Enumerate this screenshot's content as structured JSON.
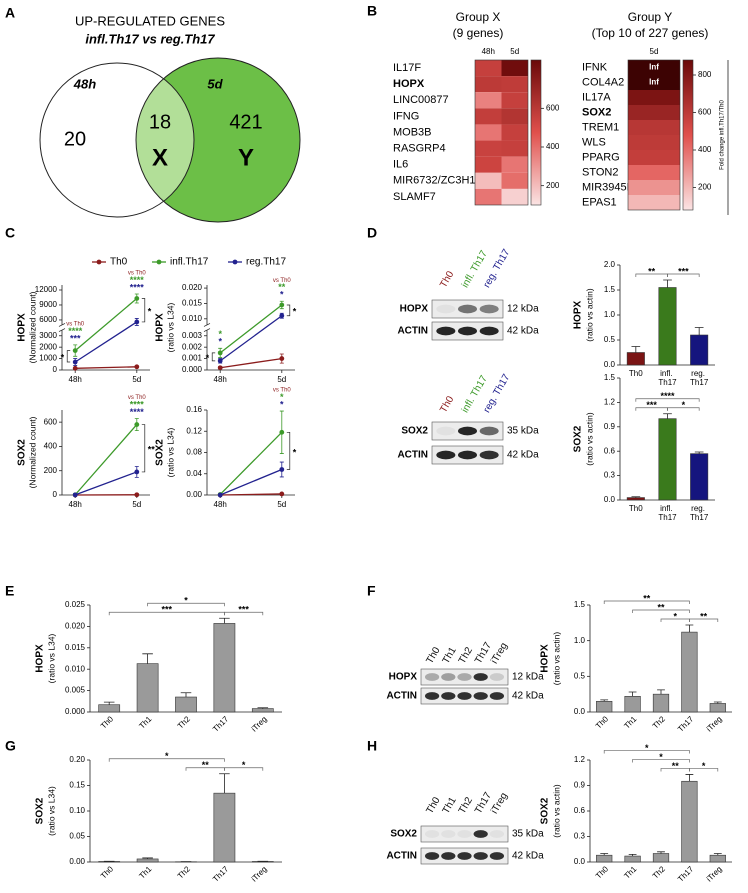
{
  "chart_data": [
    {
      "type": "venn",
      "panel": "A",
      "title": "UP-REGULATED GENES",
      "subtitle": "infl.Th17 vs reg.Th17",
      "sets": [
        {
          "name": "48h",
          "color": "#ffffff"
        },
        {
          "name": "5d",
          "color": "#6cbf47"
        }
      ],
      "overlap_color": "#b2df98",
      "values": [
        20,
        18,
        421
      ],
      "region_labels": [
        null,
        "X",
        "Y"
      ]
    },
    {
      "type": "heatmap",
      "panel": "B",
      "title": "Group X",
      "subtitle": "(9 genes)",
      "columns": [
        "48h",
        "5d"
      ],
      "rows": [
        "IL17F",
        "HOPX",
        "LINC00877",
        "IFNG",
        "MOB3B",
        "RASGRP4",
        "IL6",
        "MIR6732/ZC3H12A",
        "SLAMF7"
      ],
      "values": [
        [
          560,
          830
        ],
        [
          590,
          580
        ],
        [
          350,
          560
        ],
        [
          570,
          620
        ],
        [
          380,
          560
        ],
        [
          550,
          560
        ],
        [
          540,
          380
        ],
        [
          200,
          400
        ],
        [
          380,
          150
        ]
      ],
      "highlight_row": 1,
      "clim": [
        100,
        850
      ],
      "cticks": [
        200,
        400,
        600
      ],
      "colors": [
        "#fbe4e4",
        "#e0504c",
        "#6a0909"
      ]
    },
    {
      "type": "heatmap",
      "title": "Group Y",
      "subtitle": "(Top 10 of 227 genes)",
      "columns": [
        "5d"
      ],
      "rows": [
        "IFNK",
        "COL4A2",
        "IL17A",
        "SOX2",
        "TREM1",
        "WLS",
        "PPARG",
        "STON2",
        "MIR3945HG",
        "EPAS1"
      ],
      "values": [
        [
          null
        ],
        [
          null
        ],
        [
          820
        ],
        [
          720
        ],
        [
          620
        ],
        [
          600
        ],
        [
          580
        ],
        [
          420
        ],
        [
          300
        ],
        [
          200
        ]
      ],
      "value_labels": [
        [
          "Inf"
        ],
        [
          "Inf"
        ],
        [
          null
        ],
        [
          null
        ],
        [
          null
        ],
        [
          null
        ],
        [
          null
        ],
        [
          null
        ],
        [
          null
        ],
        [
          null
        ]
      ],
      "highlight_row": 3,
      "clim": [
        80,
        880
      ],
      "cticks": [
        200,
        400,
        600,
        800
      ],
      "colors": [
        "#fbe4e4",
        "#e0504c",
        "#6a0909"
      ],
      "inf_color": "#3d0303",
      "colorbar_label": "Fold change infl.Th17/Th0"
    },
    {
      "type": "line",
      "panel": "C",
      "ylabel": "HOPX",
      "ylabel2": "(Normalized count)",
      "categories": [
        "48h",
        "5d"
      ],
      "legend": "top",
      "series": [
        {
          "name": "Th0",
          "color": "#8b1c1c",
          "values": [
            150,
            280
          ],
          "errors": [
            50,
            60
          ]
        },
        {
          "name": "infl.Th17",
          "color": "#3d9a2a",
          "values": [
            1700,
            10300
          ],
          "errors": [
            500,
            900
          ],
          "sig": [
            "****",
            "****"
          ]
        },
        {
          "name": "reg.Th17",
          "color": "#22228f",
          "values": [
            700,
            5600
          ],
          "errors": [
            300,
            700
          ],
          "sig": [
            "***",
            "****"
          ]
        }
      ],
      "sig_label": [
        "vs Th0",
        "vs Th0"
      ],
      "pair_sig": [
        "*",
        "*"
      ],
      "ylim": [
        0,
        13000
      ],
      "ybreak": [
        3500,
        5000
      ],
      "yticks": [
        0,
        1000,
        2000,
        3000,
        6000,
        9000,
        12000
      ]
    },
    {
      "type": "line",
      "ylabel": "HOPX",
      "ylabel2": "(ratio vs L34)",
      "categories": [
        "48h",
        "5d"
      ],
      "series": [
        {
          "color": "#8b1c1c",
          "values": [
            0.0002,
            0.001
          ],
          "errors": [
            0.0001,
            0.0004
          ]
        },
        {
          "color": "#3d9a2a",
          "values": [
            0.0015,
            0.0145
          ],
          "errors": [
            0.0004,
            0.0012
          ],
          "sig": [
            "*",
            "**"
          ]
        },
        {
          "color": "#22228f",
          "values": [
            0.0008,
            0.011
          ],
          "errors": [
            0.0002,
            0.0008
          ],
          "sig": [
            "*",
            "*"
          ]
        }
      ],
      "sig_label": [
        null,
        "vs Th0"
      ],
      "pair_sig": [
        "*",
        "*"
      ],
      "ylim": [
        0,
        0.021
      ],
      "ybreak": [
        0.0035,
        0.008
      ],
      "yticks": [
        {
          "value": 0,
          "label": "0.000"
        },
        0.001,
        0.002,
        0.003,
        {
          "value": 0.01,
          "label": "0.010"
        },
        0.015,
        {
          "value": 0.02,
          "label": "0.020"
        }
      ]
    },
    {
      "type": "line",
      "ylabel": "SOX2",
      "ylabel2": "(Normalized count)",
      "categories": [
        "48h",
        "5d"
      ],
      "series": [
        {
          "color": "#8b1c1c",
          "values": [
            0,
            2
          ],
          "errors": [
            0,
            1
          ]
        },
        {
          "color": "#3d9a2a",
          "values": [
            2,
            580
          ],
          "errors": [
            1,
            50
          ],
          "sig": [
            null,
            "****"
          ]
        },
        {
          "color": "#22228f",
          "values": [
            1,
            190
          ],
          "errors": [
            0.5,
            45
          ],
          "sig": [
            null,
            "****"
          ]
        }
      ],
      "sig_label": [
        null,
        "vs Th0"
      ],
      "pair_sig": [
        null,
        "**"
      ],
      "ylim": [
        0,
        700
      ],
      "yticks": [
        0,
        200,
        400,
        600
      ]
    },
    {
      "type": "line",
      "ylabel": "SOX2",
      "ylabel2": "(ratio vs L34)",
      "categories": [
        "48h",
        "5d"
      ],
      "series": [
        {
          "color": "#8b1c1c",
          "values": [
            0,
            0.002
          ],
          "errors": [
            0,
            0.001
          ]
        },
        {
          "color": "#3d9a2a",
          "values": [
            0.001,
            0.118
          ],
          "errors": [
            0.0005,
            0.04
          ],
          "sig": [
            null,
            "*"
          ]
        },
        {
          "color": "#22228f",
          "values": [
            0,
            0.048
          ],
          "errors": [
            0,
            0.014
          ],
          "sig": [
            null,
            "*"
          ]
        }
      ],
      "sig_label": [
        null,
        "vs Th0"
      ],
      "pair_sig": [
        null,
        "*"
      ],
      "ylim": [
        0,
        0.16
      ],
      "yticks": [
        {
          "value": 0,
          "label": "0.00"
        },
        0.04,
        0.08,
        0.12,
        0.16
      ]
    },
    {
      "type": "blot",
      "panel": "D",
      "lanes": [
        "Th0",
        "infl. Th17",
        "reg. Th17"
      ],
      "lane_colors": [
        "#8b1c1c",
        "#3d9a2a",
        "#22228f"
      ],
      "bands": [
        {
          "name": "HOPX",
          "size": "12 kDa",
          "signal": [
            0.05,
            0.55,
            0.5
          ]
        },
        {
          "name": "ACTIN",
          "size": "42 kDa",
          "signal": [
            0.9,
            0.9,
            0.9
          ]
        }
      ]
    },
    {
      "type": "bar",
      "ylabel": "HOPX",
      "ylabel2": "(ratio vs actin)",
      "categories": [
        "Th0",
        "infl. Th17",
        "reg. Th17"
      ],
      "values": [
        0.25,
        1.55,
        0.6
      ],
      "errors": [
        0.12,
        0.15,
        0.15
      ],
      "colors": [
        "#7a1414",
        "#3a7a1c",
        "#15157e"
      ],
      "ylim": [
        0,
        2
      ],
      "yticks": [
        {
          "value": 0,
          "label": "0.0"
        },
        0.5,
        {
          "value": 1,
          "label": "1.0"
        },
        1.5,
        {
          "value": 2,
          "label": "2.0"
        }
      ],
      "brackets": [
        {
          "from": 0,
          "to": 1,
          "label": "**"
        },
        {
          "from": 1,
          "to": 2,
          "label": "***"
        }
      ]
    },
    {
      "type": "blot",
      "lanes": [
        "Th0",
        "infl. Th17",
        "reg. Th17"
      ],
      "lane_colors": [
        "#8b1c1c",
        "#3d9a2a",
        "#22228f"
      ],
      "bands": [
        {
          "name": "SOX2",
          "size": "35 kDa",
          "signal": [
            0.05,
            0.9,
            0.6
          ]
        },
        {
          "name": "ACTIN",
          "size": "42 kDa",
          "signal": [
            0.9,
            0.9,
            0.85
          ]
        }
      ]
    },
    {
      "type": "bar",
      "ylabel": "SOX2",
      "ylabel2": "(ratio vs actin)",
      "categories": [
        "Th0",
        "infl. Th17",
        "reg. Th17"
      ],
      "values": [
        0.03,
        1.0,
        0.57
      ],
      "errors": [
        0.01,
        0.06,
        0.02
      ],
      "colors": [
        "#7a1414",
        "#3a7a1c",
        "#15157e"
      ],
      "ylim": [
        0,
        1.5
      ],
      "yticks": [
        {
          "value": 0,
          "label": "0.0"
        },
        0.3,
        0.6,
        0.9,
        1.2,
        1.5
      ],
      "brackets": [
        {
          "from": 0,
          "to": 1,
          "label": "***"
        },
        {
          "from": 1,
          "to": 2,
          "label": "*"
        },
        {
          "from": 0,
          "to": 2,
          "label": "****"
        }
      ]
    },
    {
      "type": "bar",
      "panel": "E",
      "ylabel": "HOPX",
      "ylabel2": "(ratio vs L34)",
      "categories": [
        "Th0",
        "Th1",
        "Th2",
        "Th17",
        "iTreg"
      ],
      "values": [
        0.0017,
        0.0113,
        0.0035,
        0.0207,
        0.0008
      ],
      "errors": [
        0.0006,
        0.0023,
        0.001,
        0.0012,
        0.0002
      ],
      "color": "#9a9a9a",
      "xtick_rotation": 45,
      "ylim": [
        0,
        0.025
      ],
      "yticks": [
        {
          "value": 0,
          "label": "0.000"
        },
        0.005,
        {
          "value": 0.01,
          "label": "0.010"
        },
        0.015,
        {
          "value": 0.02,
          "label": "0.020"
        },
        0.025
      ],
      "brackets": [
        {
          "from": 0,
          "to": 3,
          "label": "***"
        },
        {
          "from": 3,
          "to": 4,
          "label": "***"
        },
        {
          "from": 1,
          "to": 3,
          "label": "*"
        }
      ]
    },
    {
      "type": "blot",
      "panel": "F",
      "lanes": [
        "Th0",
        "Th1",
        "Th2",
        "Th17",
        "iTreg"
      ],
      "bands": [
        {
          "name": "HOPX",
          "size": "12 kDa",
          "signal": [
            0.3,
            0.35,
            0.3,
            0.85,
            0.15
          ]
        },
        {
          "name": "ACTIN",
          "size": "42 kDa",
          "signal": [
            0.85,
            0.85,
            0.85,
            0.85,
            0.85
          ]
        }
      ]
    },
    {
      "type": "bar",
      "ylabel": "HOPX",
      "ylabel2": "(ratio vs actin)",
      "categories": [
        "Th0",
        "Th1",
        "Th2",
        "Th17",
        "iTreg"
      ],
      "values": [
        0.15,
        0.22,
        0.25,
        1.12,
        0.12
      ],
      "errors": [
        0.02,
        0.06,
        0.06,
        0.1,
        0.02
      ],
      "color": "#9a9a9a",
      "xtick_rotation": 45,
      "ylim": [
        0,
        1.5
      ],
      "yticks": [
        {
          "value": 0,
          "label": "0.0"
        },
        0.5,
        {
          "value": 1,
          "label": "1.0"
        },
        1.5
      ],
      "brackets": [
        {
          "from": 2,
          "to": 3,
          "label": "*"
        },
        {
          "from": 3,
          "to": 4,
          "label": "**"
        },
        {
          "from": 1,
          "to": 3,
          "label": "**"
        },
        {
          "from": 0,
          "to": 3,
          "label": "**"
        }
      ]
    },
    {
      "type": "bar",
      "panel": "G",
      "ylabel": "SOX2",
      "ylabel2": "(ratio vs L34)",
      "categories": [
        "Th0",
        "Th1",
        "Th2",
        "Th17",
        "iTreg"
      ],
      "values": [
        0.001,
        0.006,
        0.0005,
        0.135,
        0.001
      ],
      "errors": [
        0.0005,
        0.002,
        0.0003,
        0.038,
        0.0005
      ],
      "color": "#9a9a9a",
      "xtick_rotation": 45,
      "ylim": [
        0,
        0.2
      ],
      "yticks": [
        {
          "value": 0,
          "label": "0.00"
        },
        0.05,
        {
          "value": 0.1,
          "label": "0.10"
        },
        0.15,
        {
          "value": 0.2,
          "label": "0.20"
        }
      ],
      "brackets": [
        {
          "from": 2,
          "to": 3,
          "label": "**"
        },
        {
          "from": 3,
          "to": 4,
          "label": "*"
        },
        {
          "from": 0,
          "to": 3,
          "label": "*"
        }
      ]
    },
    {
      "type": "blot",
      "panel": "H",
      "lanes": [
        "Th0",
        "Th1",
        "Th2",
        "Th17",
        "iTreg"
      ],
      "bands": [
        {
          "name": "SOX2",
          "size": "35 kDa",
          "signal": [
            0.05,
            0.05,
            0.05,
            0.85,
            0.05
          ]
        },
        {
          "name": "ACTIN",
          "size": "42 kDa",
          "signal": [
            0.85,
            0.85,
            0.85,
            0.85,
            0.85
          ]
        }
      ]
    },
    {
      "type": "bar",
      "ylabel": "SOX2",
      "ylabel2": "(ratio vs actin)",
      "categories": [
        "Th0",
        "Th1",
        "Th2",
        "Th17",
        "iTreg"
      ],
      "values": [
        0.08,
        0.07,
        0.1,
        0.95,
        0.08
      ],
      "errors": [
        0.02,
        0.02,
        0.02,
        0.08,
        0.02
      ],
      "color": "#9a9a9a",
      "xtick_rotation": 45,
      "ylim": [
        0,
        1.2
      ],
      "yticks": [
        {
          "value": 0,
          "label": "0.0"
        },
        0.3,
        0.6,
        0.9,
        1.2
      ],
      "brackets": [
        {
          "from": 2,
          "to": 3,
          "label": "**"
        },
        {
          "from": 3,
          "to": 4,
          "label": "*"
        },
        {
          "from": 1,
          "to": 3,
          "label": "*"
        },
        {
          "from": 0,
          "to": 3,
          "label": "*"
        }
      ]
    }
  ]
}
